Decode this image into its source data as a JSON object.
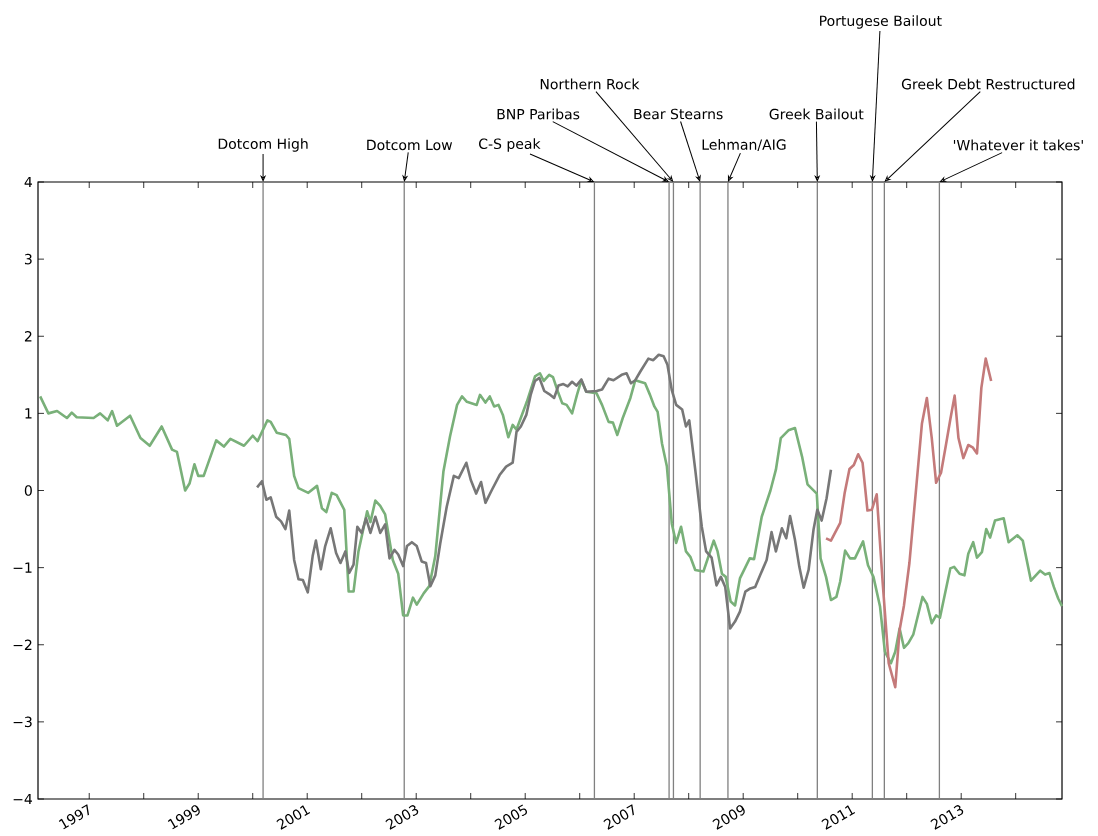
{
  "chart_data": {
    "type": "line",
    "xlim": [
      1996.06,
      2014.85
    ],
    "ylim": [
      -4,
      4
    ],
    "xticks": [
      1997,
      {
        "value": 1998,
        "label": null
      },
      1999,
      {
        "value": 2000,
        "label": null
      },
      2001,
      {
        "value": 2002,
        "label": null
      },
      2003,
      {
        "value": 2004,
        "label": null
      },
      2005,
      {
        "value": 2006,
        "label": null
      },
      2007,
      {
        "value": 2008,
        "label": null
      },
      2009,
      {
        "value": 2010,
        "label": null
      },
      2011,
      {
        "value": 2012,
        "label": null
      },
      2013,
      {
        "value": 2014,
        "label": null
      }
    ],
    "yticks": [
      {
        "value": -4,
        "label": "−4"
      },
      {
        "value": -3,
        "label": "−3"
      },
      {
        "value": -2,
        "label": "−2"
      },
      {
        "value": -1,
        "label": "−1"
      },
      0,
      1,
      2,
      3,
      4
    ],
    "grid": false,
    "line_style": "solid",
    "marker": "none",
    "series": [
      {
        "color": "#79b079",
        "x": [
          1996.1,
          1996.25,
          1996.41,
          1996.59,
          1996.68,
          1996.77,
          1997.08,
          1997.2,
          1997.34,
          1997.42,
          1997.51,
          1997.75,
          1997.94,
          1998.11,
          1998.33,
          1998.52,
          1998.61,
          1998.76,
          1998.84,
          1998.93,
          1999.0,
          1999.1,
          1999.33,
          1999.47,
          1999.59,
          1999.84,
          2000.0,
          2000.09,
          2000.27,
          2000.33,
          2000.44,
          2000.61,
          2000.67,
          2000.76,
          2000.84,
          2001.02,
          2001.18,
          2001.27,
          2001.35,
          2001.45,
          2001.54,
          2001.68,
          2001.76,
          2001.85,
          2001.94,
          2002.1,
          2002.16,
          2002.25,
          2002.34,
          2002.43,
          2002.57,
          2002.67,
          2002.76,
          2002.84,
          2002.94,
          2003.01,
          2003.14,
          2003.24,
          2003.35,
          2003.5,
          2003.62,
          2003.75,
          2003.84,
          2003.93,
          2004.11,
          2004.17,
          2004.27,
          2004.35,
          2004.43,
          2004.51,
          2004.59,
          2004.69,
          2004.77,
          2004.84,
          2005.03,
          2005.18,
          2005.27,
          2005.34,
          2005.44,
          2005.51,
          2005.6,
          2005.68,
          2005.76,
          2005.86,
          2005.95,
          2006.03,
          2006.12,
          2006.31,
          2006.41,
          2006.53,
          2006.61,
          2006.69,
          2006.79,
          2006.93,
          2007.02,
          2007.11,
          2007.2,
          2007.29,
          2007.37,
          2007.43,
          2007.51,
          2007.6,
          2007.69,
          2007.77,
          2007.86,
          2007.95,
          2008.03,
          2008.12,
          2008.27,
          2008.46,
          2008.53,
          2008.61,
          2008.68,
          2008.77,
          2008.85,
          2008.94,
          2009.12,
          2009.2,
          2009.34,
          2009.5,
          2009.6,
          2009.69,
          2009.83,
          2009.95,
          2010.08,
          2010.18,
          2010.35,
          2010.42,
          2010.52,
          2010.61,
          2010.71,
          2010.78,
          2010.87,
          2010.96,
          2011.05,
          2011.2,
          2011.29,
          2011.39,
          2011.51,
          2011.6,
          2011.71,
          2011.79,
          2011.87,
          2011.95,
          2012.03,
          2012.12,
          2012.29,
          2012.37,
          2012.46,
          2012.54,
          2012.61,
          2012.8,
          2012.87,
          2012.97,
          2013.06,
          2013.13,
          2013.22,
          2013.29,
          2013.38,
          2013.46,
          2013.53,
          2013.62,
          2013.78,
          2013.87,
          2014.03,
          2014.13,
          2014.28,
          2014.45,
          2014.54,
          2014.62,
          2014.7,
          2014.78,
          2014.85
        ],
        "values": [
          1.22,
          1.0,
          1.03,
          0.94,
          1.01,
          0.95,
          0.94,
          1.0,
          0.91,
          1.03,
          0.84,
          0.97,
          0.68,
          0.58,
          0.83,
          0.53,
          0.5,
          0.0,
          0.09,
          0.34,
          0.19,
          0.19,
          0.65,
          0.57,
          0.67,
          0.58,
          0.71,
          0.64,
          0.91,
          0.89,
          0.75,
          0.72,
          0.67,
          0.19,
          0.03,
          -0.03,
          0.06,
          -0.23,
          -0.28,
          -0.03,
          -0.06,
          -0.25,
          -1.31,
          -1.31,
          -0.79,
          -0.27,
          -0.41,
          -0.13,
          -0.2,
          -0.31,
          -0.9,
          -1.08,
          -1.62,
          -1.62,
          -1.39,
          -1.48,
          -1.33,
          -1.24,
          -0.85,
          0.25,
          0.7,
          1.11,
          1.22,
          1.15,
          1.11,
          1.24,
          1.14,
          1.22,
          1.09,
          1.11,
          0.98,
          0.69,
          0.85,
          0.79,
          1.15,
          1.48,
          1.52,
          1.42,
          1.5,
          1.47,
          1.28,
          1.13,
          1.11,
          1.0,
          1.24,
          1.43,
          1.28,
          1.26,
          1.11,
          0.89,
          0.88,
          0.72,
          0.94,
          1.2,
          1.43,
          1.41,
          1.39,
          1.24,
          1.09,
          1.02,
          0.61,
          0.31,
          -0.43,
          -0.68,
          -0.47,
          -0.79,
          -0.86,
          -1.03,
          -1.05,
          -0.65,
          -0.79,
          -1.08,
          -1.12,
          -1.44,
          -1.49,
          -1.14,
          -0.88,
          -0.89,
          -0.34,
          0.0,
          0.27,
          0.68,
          0.78,
          0.81,
          0.44,
          0.08,
          -0.04,
          -0.88,
          -1.12,
          -1.42,
          -1.38,
          -1.18,
          -0.78,
          -0.88,
          -0.88,
          -0.66,
          -0.97,
          -1.12,
          -1.5,
          -2.09,
          -2.24,
          -2.09,
          -1.79,
          -2.04,
          -1.98,
          -1.87,
          -1.38,
          -1.47,
          -1.72,
          -1.62,
          -1.65,
          -1.01,
          -0.99,
          -1.08,
          -1.1,
          -0.82,
          -0.67,
          -0.87,
          -0.8,
          -0.5,
          -0.61,
          -0.39,
          -0.36,
          -0.67,
          -0.58,
          -0.65,
          -1.17,
          -1.04,
          -1.09,
          -1.07,
          -1.25,
          -1.4,
          -1.5
        ]
      },
      {
        "color": "#777777",
        "x": [
          2000.08,
          2000.17,
          2000.25,
          2000.33,
          2000.43,
          2000.52,
          2000.6,
          2000.67,
          2000.76,
          2000.84,
          2000.92,
          2001.01,
          2001.1,
          2001.16,
          2001.25,
          2001.33,
          2001.43,
          2001.53,
          2001.61,
          2001.7,
          2001.77,
          2001.85,
          2001.92,
          2002.0,
          2002.08,
          2002.16,
          2002.25,
          2002.34,
          2002.43,
          2002.51,
          2002.6,
          2002.67,
          2002.76,
          2002.83,
          2002.92,
          2003.01,
          2003.1,
          2003.18,
          2003.26,
          2003.35,
          2003.44,
          2003.56,
          2003.69,
          2003.78,
          2003.92,
          2004.0,
          2004.1,
          2004.19,
          2004.27,
          2004.39,
          2004.53,
          2004.65,
          2004.77,
          2004.84,
          2004.92,
          2005.02,
          2005.1,
          2005.18,
          2005.26,
          2005.35,
          2005.44,
          2005.53,
          2005.61,
          2005.7,
          2005.78,
          2005.86,
          2005.94,
          2006.03,
          2006.12,
          2006.31,
          2006.41,
          2006.53,
          2006.62,
          2006.77,
          2006.86,
          2006.94,
          2007.02,
          2007.11,
          2007.26,
          2007.35,
          2007.45,
          2007.54,
          2007.61,
          2007.69,
          2007.77,
          2007.88,
          2007.95,
          2008.01,
          2008.12,
          2008.24,
          2008.32,
          2008.42,
          2008.51,
          2008.59,
          2008.67,
          2008.76,
          2008.85,
          2008.94,
          2009.04,
          2009.13,
          2009.22,
          2009.31,
          2009.43,
          2009.52,
          2009.6,
          2009.71,
          2009.79,
          2009.86,
          2009.95,
          2010.03,
          2010.11,
          2010.2,
          2010.29,
          2010.36,
          2010.44,
          2010.53,
          2010.61
        ],
        "values": [
          0.04,
          0.12,
          -0.12,
          -0.09,
          -0.34,
          -0.4,
          -0.5,
          -0.26,
          -0.9,
          -1.15,
          -1.16,
          -1.32,
          -0.85,
          -0.65,
          -1.02,
          -0.72,
          -0.49,
          -0.81,
          -0.94,
          -0.79,
          -1.07,
          -0.96,
          -0.47,
          -0.55,
          -0.36,
          -0.55,
          -0.34,
          -0.55,
          -0.44,
          -0.88,
          -0.77,
          -0.83,
          -0.98,
          -0.72,
          -0.67,
          -0.72,
          -0.92,
          -0.94,
          -1.24,
          -1.1,
          -0.69,
          -0.21,
          0.19,
          0.16,
          0.36,
          0.14,
          -0.04,
          0.11,
          -0.16,
          0.01,
          0.2,
          0.31,
          0.36,
          0.76,
          0.83,
          0.98,
          1.24,
          1.42,
          1.46,
          1.29,
          1.25,
          1.2,
          1.36,
          1.38,
          1.35,
          1.41,
          1.36,
          1.44,
          1.28,
          1.29,
          1.31,
          1.45,
          1.43,
          1.5,
          1.52,
          1.39,
          1.43,
          1.54,
          1.71,
          1.69,
          1.76,
          1.74,
          1.63,
          1.3,
          1.11,
          1.05,
          0.83,
          0.91,
          0.27,
          -0.47,
          -0.79,
          -0.87,
          -1.23,
          -1.12,
          -1.25,
          -1.79,
          -1.7,
          -1.57,
          -1.31,
          -1.27,
          -1.25,
          -1.1,
          -0.9,
          -0.54,
          -0.79,
          -0.49,
          -0.62,
          -0.33,
          -0.64,
          -0.99,
          -1.26,
          -1.03,
          -0.51,
          -0.25,
          -0.39,
          -0.1,
          0.27
        ]
      },
      {
        "color": "#c47a7a",
        "x": [
          2010.52,
          2010.61,
          2010.78,
          2010.86,
          2010.95,
          2011.03,
          2011.11,
          2011.19,
          2011.28,
          2011.36,
          2011.45,
          2011.56,
          2011.67,
          2011.79,
          2011.87,
          2011.95,
          2012.05,
          2012.17,
          2012.28,
          2012.37,
          2012.46,
          2012.54,
          2012.63,
          2012.72,
          2012.8,
          2012.88,
          2012.95,
          2013.04,
          2013.13,
          2013.21,
          2013.29,
          2013.37,
          2013.45,
          2013.55
        ],
        "values": [
          -0.62,
          -0.65,
          -0.42,
          -0.04,
          0.28,
          0.33,
          0.47,
          0.36,
          -0.26,
          -0.25,
          -0.05,
          -1.2,
          -2.24,
          -2.55,
          -1.81,
          -1.49,
          -0.94,
          0.0,
          0.87,
          1.2,
          0.68,
          0.1,
          0.23,
          0.59,
          0.92,
          1.23,
          0.68,
          0.42,
          0.59,
          0.56,
          0.48,
          1.33,
          1.71,
          1.42
        ]
      }
    ],
    "ref_lines": [
      {
        "axis": "x",
        "value": 2000.19,
        "label": "Dotcom High",
        "color": "#808080"
      },
      {
        "axis": "x",
        "value": 2002.78,
        "label": "Dotcom Low",
        "color": "#808080"
      },
      {
        "axis": "x",
        "value": 2006.27,
        "label": "C-S peak",
        "color": "#808080"
      },
      {
        "axis": "x",
        "value": 2007.64,
        "label": "BNP Paribas",
        "color": "#808080"
      },
      {
        "axis": "x",
        "value": 2007.72,
        "label": "Northern Rock",
        "color": "#808080"
      },
      {
        "axis": "x",
        "value": 2008.21,
        "label": "Bear Stearns",
        "color": "#808080"
      },
      {
        "axis": "x",
        "value": 2008.72,
        "label": "Lehman/AIG",
        "color": "#808080"
      },
      {
        "axis": "x",
        "value": 2010.36,
        "label": "Greek Bailout",
        "color": "#808080"
      },
      {
        "axis": "x",
        "value": 2011.37,
        "label": "Portugese Bailout",
        "color": "#808080"
      },
      {
        "axis": "x",
        "value": 2011.59,
        "label": "Greek Debt Restructured",
        "color": "#808080"
      },
      {
        "axis": "x",
        "value": 2012.6,
        "label": "'Whatever it takes'",
        "color": "#808080"
      }
    ]
  }
}
